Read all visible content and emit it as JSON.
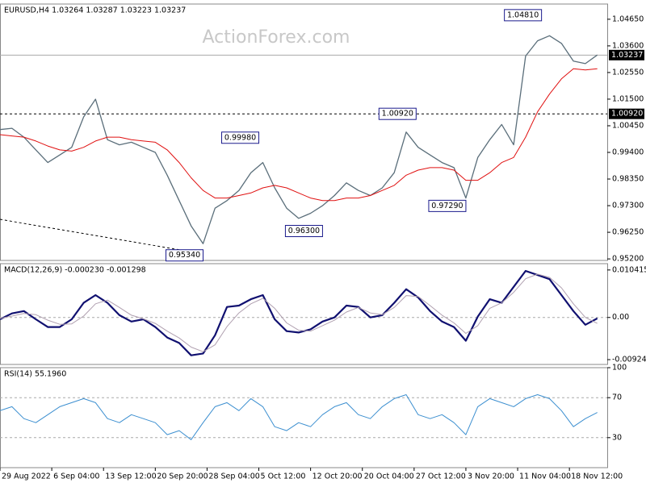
{
  "chart_data": [
    {
      "type": "line",
      "title": "EURUSD,H4  1.03264 1.03287 1.03223 1.03237",
      "watermark": "ActionForex.com",
      "x": [
        0,
        3,
        6,
        9,
        12,
        15,
        18,
        21,
        24,
        27,
        30,
        33,
        36,
        39,
        42,
        45,
        48,
        51,
        54,
        57,
        60,
        63,
        66,
        69,
        72,
        75,
        78,
        81,
        84,
        87,
        90,
        93,
        96,
        99,
        102,
        105,
        108,
        111,
        114,
        117,
        120,
        123,
        126,
        129,
        132,
        135,
        138,
        141,
        144,
        147,
        150
      ],
      "xlim": [
        0,
        152.5
      ],
      "ylim": [
        0.9514,
        1.0525
      ],
      "yticks": [
        {
          "value": 1.0465,
          "label": "1.04650"
        },
        {
          "value": 1.036,
          "label": "1.03600"
        },
        {
          "value": 1.0255,
          "label": "1.02550"
        },
        {
          "value": 1.015,
          "label": "1.01500"
        },
        {
          "value": 1.0045,
          "label": "1.00450"
        },
        {
          "value": 0.994,
          "label": "0.99400"
        },
        {
          "value": 0.9835,
          "label": "0.98350"
        },
        {
          "value": 0.973,
          "label": "0.97300"
        },
        {
          "value": 0.9625,
          "label": "0.96250"
        },
        {
          "value": 0.952,
          "label": "0.95200"
        }
      ],
      "series": [
        {
          "color": "#5a6e7a",
          "line_width": 1.3,
          "values": [
            1.003,
            1.0035,
            1.0,
            0.995,
            0.99,
            0.993,
            0.996,
            1.008,
            1.015,
            0.999,
            0.997,
            0.998,
            0.996,
            0.994,
            0.985,
            0.975,
            0.965,
            0.958,
            0.972,
            0.975,
            0.979,
            0.986,
            0.99,
            0.98,
            0.972,
            0.968,
            0.97,
            0.973,
            0.977,
            0.982,
            0.979,
            0.977,
            0.98,
            0.986,
            1.002,
            0.996,
            0.993,
            0.99,
            0.988,
            0.976,
            0.992,
            0.999,
            1.005,
            0.997,
            1.032,
            1.038,
            1.04,
            1.037,
            1.03,
            1.029,
            1.0324
          ]
        },
        {
          "color": "#e01010",
          "line_width": 1,
          "values": [
            1.001,
            1.0005,
            1.0,
            0.9985,
            0.9965,
            0.995,
            0.9945,
            0.996,
            0.9985,
            1.0,
            1.0,
            0.999,
            0.9985,
            0.998,
            0.995,
            0.99,
            0.984,
            0.979,
            0.976,
            0.976,
            0.977,
            0.978,
            0.98,
            0.981,
            0.98,
            0.978,
            0.976,
            0.975,
            0.975,
            0.976,
            0.976,
            0.977,
            0.979,
            0.981,
            0.985,
            0.987,
            0.988,
            0.988,
            0.987,
            0.983,
            0.983,
            0.986,
            0.99,
            0.992,
            1.0,
            1.01,
            1.017,
            1.023,
            1.027,
            1.0265,
            1.027
          ]
        }
      ],
      "trendline": {
        "x": [
          0,
          47.7
        ],
        "values": [
          0.9676,
          0.9549
        ]
      },
      "hlines": [
        {
          "value": 1.03237,
          "label": "1.03237",
          "style": "solid"
        },
        {
          "value": 1.0092,
          "label": "1.00920",
          "style": "dashed"
        }
      ],
      "annotations": [
        {
          "x": 136,
          "value": 1.0481,
          "label": "1.04810"
        },
        {
          "x": 104.5,
          "value": 1.0092,
          "label": "1.00920"
        },
        {
          "x": 65,
          "value": 0.9998,
          "label": "0.99980"
        },
        {
          "x": 117,
          "value": 0.9729,
          "label": "0.97290"
        },
        {
          "x": 81,
          "value": 0.963,
          "label": "0.96300"
        },
        {
          "x": 51,
          "value": 0.9534,
          "label": "0.95340"
        }
      ]
    },
    {
      "type": "line",
      "title": "MACD(12,26,9) -0.000230 -0.001298",
      "x": [
        0,
        3,
        6,
        9,
        12,
        15,
        18,
        21,
        24,
        27,
        30,
        33,
        36,
        39,
        42,
        45,
        48,
        51,
        54,
        57,
        60,
        63,
        66,
        69,
        72,
        75,
        78,
        81,
        84,
        87,
        90,
        93,
        96,
        99,
        102,
        105,
        108,
        111,
        114,
        117,
        120,
        123,
        126,
        129,
        132,
        135,
        138,
        141,
        144,
        147,
        150
      ],
      "xlim": [
        0,
        152.5
      ],
      "ylim": [
        -0.0103,
        0.0118
      ],
      "yticks": [
        0.010415,
        {
          "value": 0,
          "label": "0.00"
        },
        -0.009244
      ],
      "levels": [
        0
      ],
      "series": [
        {
          "color": "#101070",
          "line_width": 2.2,
          "values": [
            -0.0004,
            0.0009,
            0.0014,
            -0.0004,
            -0.0021,
            -0.0021,
            -0.0004,
            0.0032,
            0.0049,
            0.0032,
            0.0005,
            -0.0009,
            -0.0004,
            -0.0021,
            -0.0044,
            -0.0056,
            -0.0083,
            -0.0079,
            -0.0039,
            0.0023,
            0.0026,
            0.004,
            0.0049,
            -0.0004,
            -0.003,
            -0.0033,
            -0.0026,
            -0.0009,
            0,
            0.0026,
            0.0023,
            0,
            0.0005,
            0.0032,
            0.0062,
            0.0044,
            0.0014,
            -0.0009,
            -0.0021,
            -0.0051,
            0.0002,
            0.004,
            0.0032,
            0.0067,
            0.0102,
            0.0093,
            0.0084,
            0.0049,
            0.0014,
            -0.0016,
            -0.0002
          ]
        },
        {
          "color": "#b0a0b0",
          "line_width": 1,
          "values": [
            -0.0002,
            0.0003,
            0.0009,
            0.0006,
            -0.0006,
            -0.0015,
            -0.0014,
            0.0003,
            0.003,
            0.0038,
            0.0022,
            0.0005,
            -0.0003,
            -0.0013,
            -0.003,
            -0.0045,
            -0.0065,
            -0.0075,
            -0.006,
            -0.002,
            0.001,
            0.003,
            0.0042,
            0.002,
            -0.0012,
            -0.0028,
            -0.003,
            -0.0018,
            -0.0006,
            0.0012,
            0.0022,
            0.001,
            0.0006,
            0.0022,
            0.0048,
            0.0046,
            0.0026,
            0.0005,
            -0.0012,
            -0.0035,
            -0.0018,
            0.002,
            0.0032,
            0.0055,
            0.0085,
            0.0095,
            0.0088,
            0.0065,
            0.003,
            0,
            -0.0013
          ]
        }
      ]
    },
    {
      "type": "line",
      "title": "RSI(14) 55.1960",
      "x": [
        0,
        3,
        6,
        9,
        12,
        15,
        18,
        21,
        24,
        27,
        30,
        33,
        36,
        39,
        42,
        45,
        48,
        51,
        54,
        57,
        60,
        63,
        66,
        69,
        72,
        75,
        78,
        81,
        84,
        87,
        90,
        93,
        96,
        99,
        102,
        105,
        108,
        111,
        114,
        117,
        120,
        123,
        126,
        129,
        132,
        135,
        138,
        141,
        144,
        147,
        150
      ],
      "xlim": [
        0,
        152.5
      ],
      "ylim": [
        0,
        100
      ],
      "yticks": [
        100,
        70,
        30
      ],
      "levels": [
        70,
        30
      ],
      "xticks": [
        {
          "value": 0,
          "label": "29 Aug 2022"
        },
        {
          "value": 13,
          "label": "6 Sep 04:00"
        },
        {
          "value": 26,
          "label": "13 Sep 12:00"
        },
        {
          "value": 39,
          "label": "20 Sep 20:00"
        },
        {
          "value": 52,
          "label": "28 Sep 04:00"
        },
        {
          "value": 65,
          "label": "5 Oct 12:00"
        },
        {
          "value": 78,
          "label": "12 Oct 20:00"
        },
        {
          "value": 91,
          "label": "20 Oct 04:00"
        },
        {
          "value": 104,
          "label": "27 Oct 12:00"
        },
        {
          "value": 117,
          "label": "3 Nov 20:00"
        },
        {
          "value": 130,
          "label": "11 Nov 04:00"
        },
        {
          "value": 143,
          "label": "18 Nov 12:00"
        }
      ],
      "series": [
        {
          "color": "#3c8fd0",
          "line_width": 1,
          "values": [
            57,
            61,
            49,
            45,
            53,
            61,
            65,
            69,
            65,
            49,
            45,
            53,
            49,
            45,
            33,
            37,
            28,
            45,
            61,
            65,
            57,
            69,
            61,
            41,
            37,
            45,
            41,
            53,
            61,
            65,
            53,
            49,
            61,
            69,
            73,
            53,
            49,
            53,
            45,
            33,
            61,
            69,
            65,
            61,
            69,
            73,
            69,
            57,
            41,
            49,
            55.2
          ]
        }
      ]
    }
  ]
}
